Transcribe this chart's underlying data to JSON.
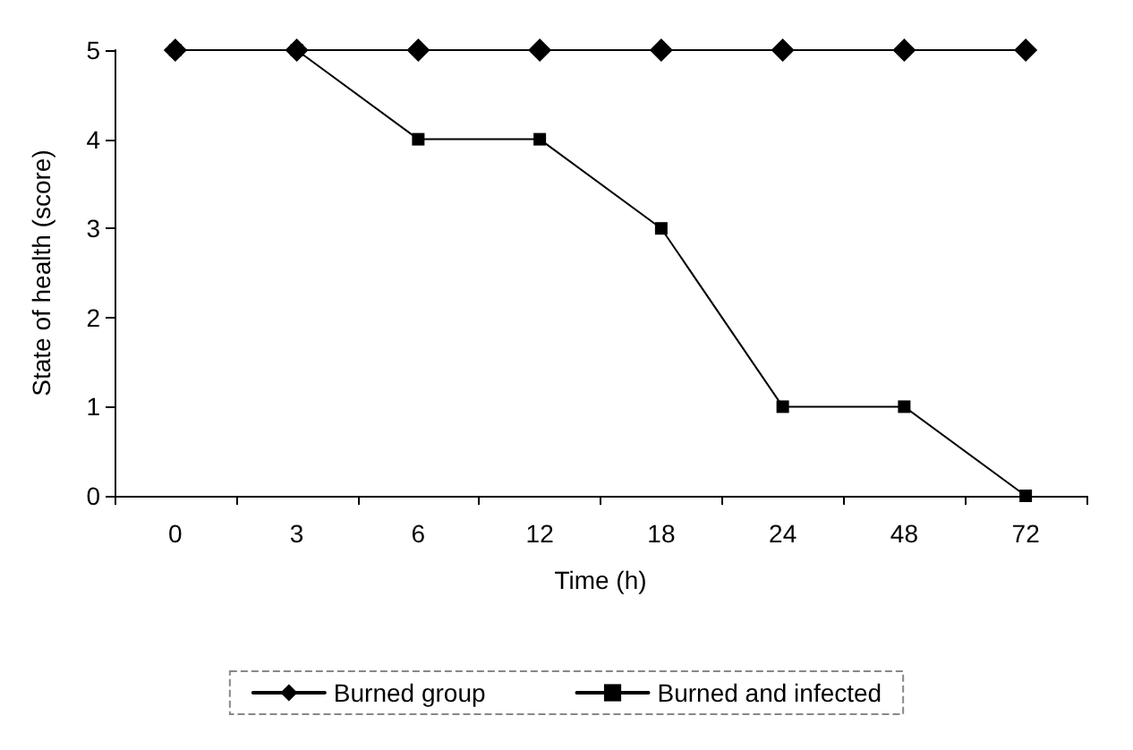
{
  "chart_data": {
    "type": "line",
    "xlabel": "Time (h)",
    "ylabel": "State of health (score)",
    "categories": [
      "0",
      "3",
      "6",
      "12",
      "18",
      "24",
      "48",
      "72"
    ],
    "series": [
      {
        "name": "Burned group",
        "color": "#000000",
        "marker": "diamond",
        "values": [
          5,
          5,
          5,
          5,
          5,
          5,
          5,
          5
        ]
      },
      {
        "name": "Burned and infected",
        "color": "#000000",
        "marker": "square",
        "values": [
          5,
          5,
          4,
          4,
          3,
          1,
          1,
          0
        ]
      }
    ],
    "ylim": [
      0,
      5
    ],
    "yticks": [
      0,
      1,
      2,
      3,
      4,
      5
    ],
    "grid": false,
    "legend": "bottom",
    "line_style": "solid"
  }
}
